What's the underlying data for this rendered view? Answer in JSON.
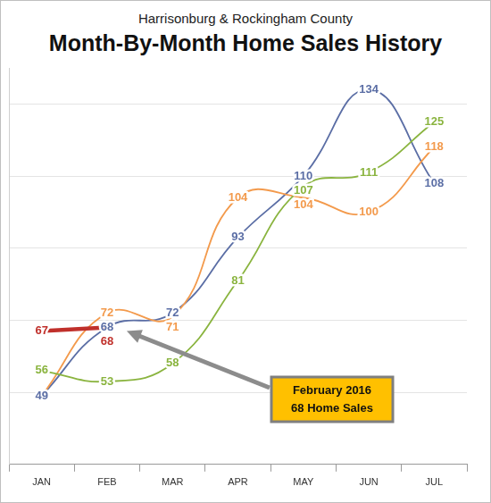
{
  "chart_data": {
    "type": "line",
    "title": "Month-By-Month Home Sales History",
    "subtitle": "Harrisonburg & Rockingham County",
    "categories": [
      "JAN",
      "FEB",
      "MAR",
      "APR",
      "MAY",
      "JUN",
      "JUL"
    ],
    "series": [
      {
        "color": "#5b6ea5",
        "values": [
          49,
          68,
          72,
          93,
          110,
          134,
          108
        ]
      },
      {
        "color": "#f39a4c",
        "values": [
          49,
          72,
          71,
          104,
          104,
          100,
          118
        ],
        "value_labels": [
          null,
          "72",
          "71",
          "104",
          "104",
          "100",
          "118"
        ]
      },
      {
        "color": "#8ab43f",
        "values": [
          56,
          53,
          58,
          81,
          107,
          111,
          125
        ]
      },
      {
        "color": "#c0302b",
        "values": [
          67,
          68,
          null,
          null,
          null,
          null,
          null
        ]
      }
    ],
    "ylim": [
      30,
      140
    ],
    "yticks": [
      30,
      50,
      70,
      90,
      110,
      130
    ],
    "grid": true,
    "tick_labels": "x",
    "data_labels": true,
    "annotation": {
      "text": [
        "February 2016",
        "68 Home Sales"
      ],
      "x": "FEB",
      "y": 68
    }
  }
}
